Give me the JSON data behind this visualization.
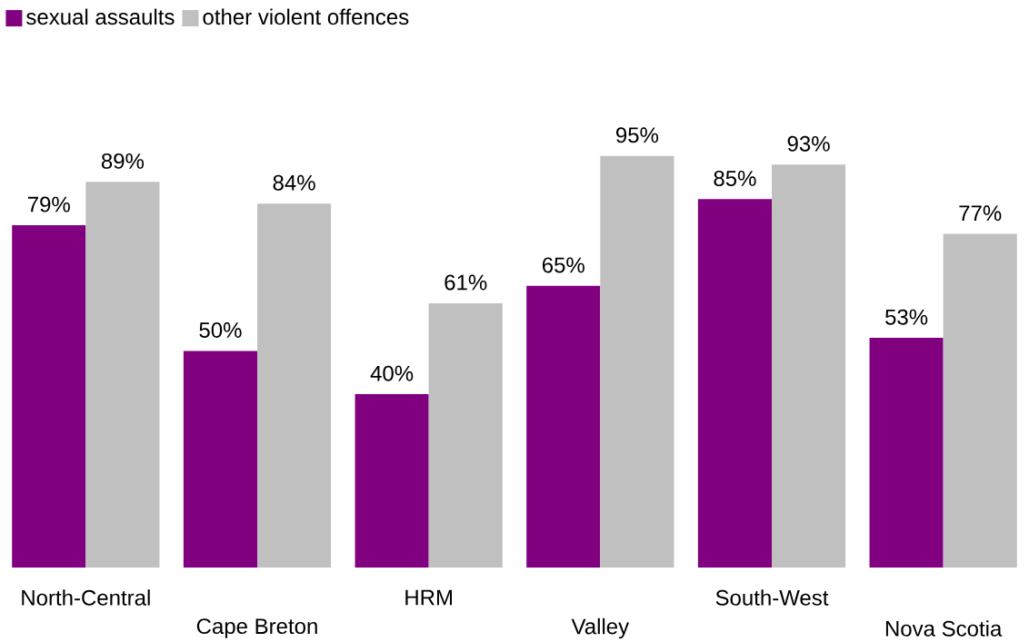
{
  "chart_data": {
    "type": "bar",
    "categories": [
      "North-Central",
      "Cape Breton",
      "HRM",
      "Valley",
      "South-West",
      "Nova Scotia"
    ],
    "series": [
      {
        "name": "sexual assaults",
        "color": "#800080",
        "values": [
          79,
          50,
          40,
          65,
          85,
          53
        ],
        "value_labels": [
          "79%",
          "50%",
          "40%",
          "65%",
          "85%",
          "53%"
        ]
      },
      {
        "name": "other violent offences",
        "color": "#c0c0c0",
        "values": [
          89,
          84,
          61,
          95,
          93,
          77
        ],
        "value_labels": [
          "89%",
          "84%",
          "61%",
          "95%",
          "93%",
          "77%"
        ]
      }
    ],
    "legend": "top left"
  }
}
